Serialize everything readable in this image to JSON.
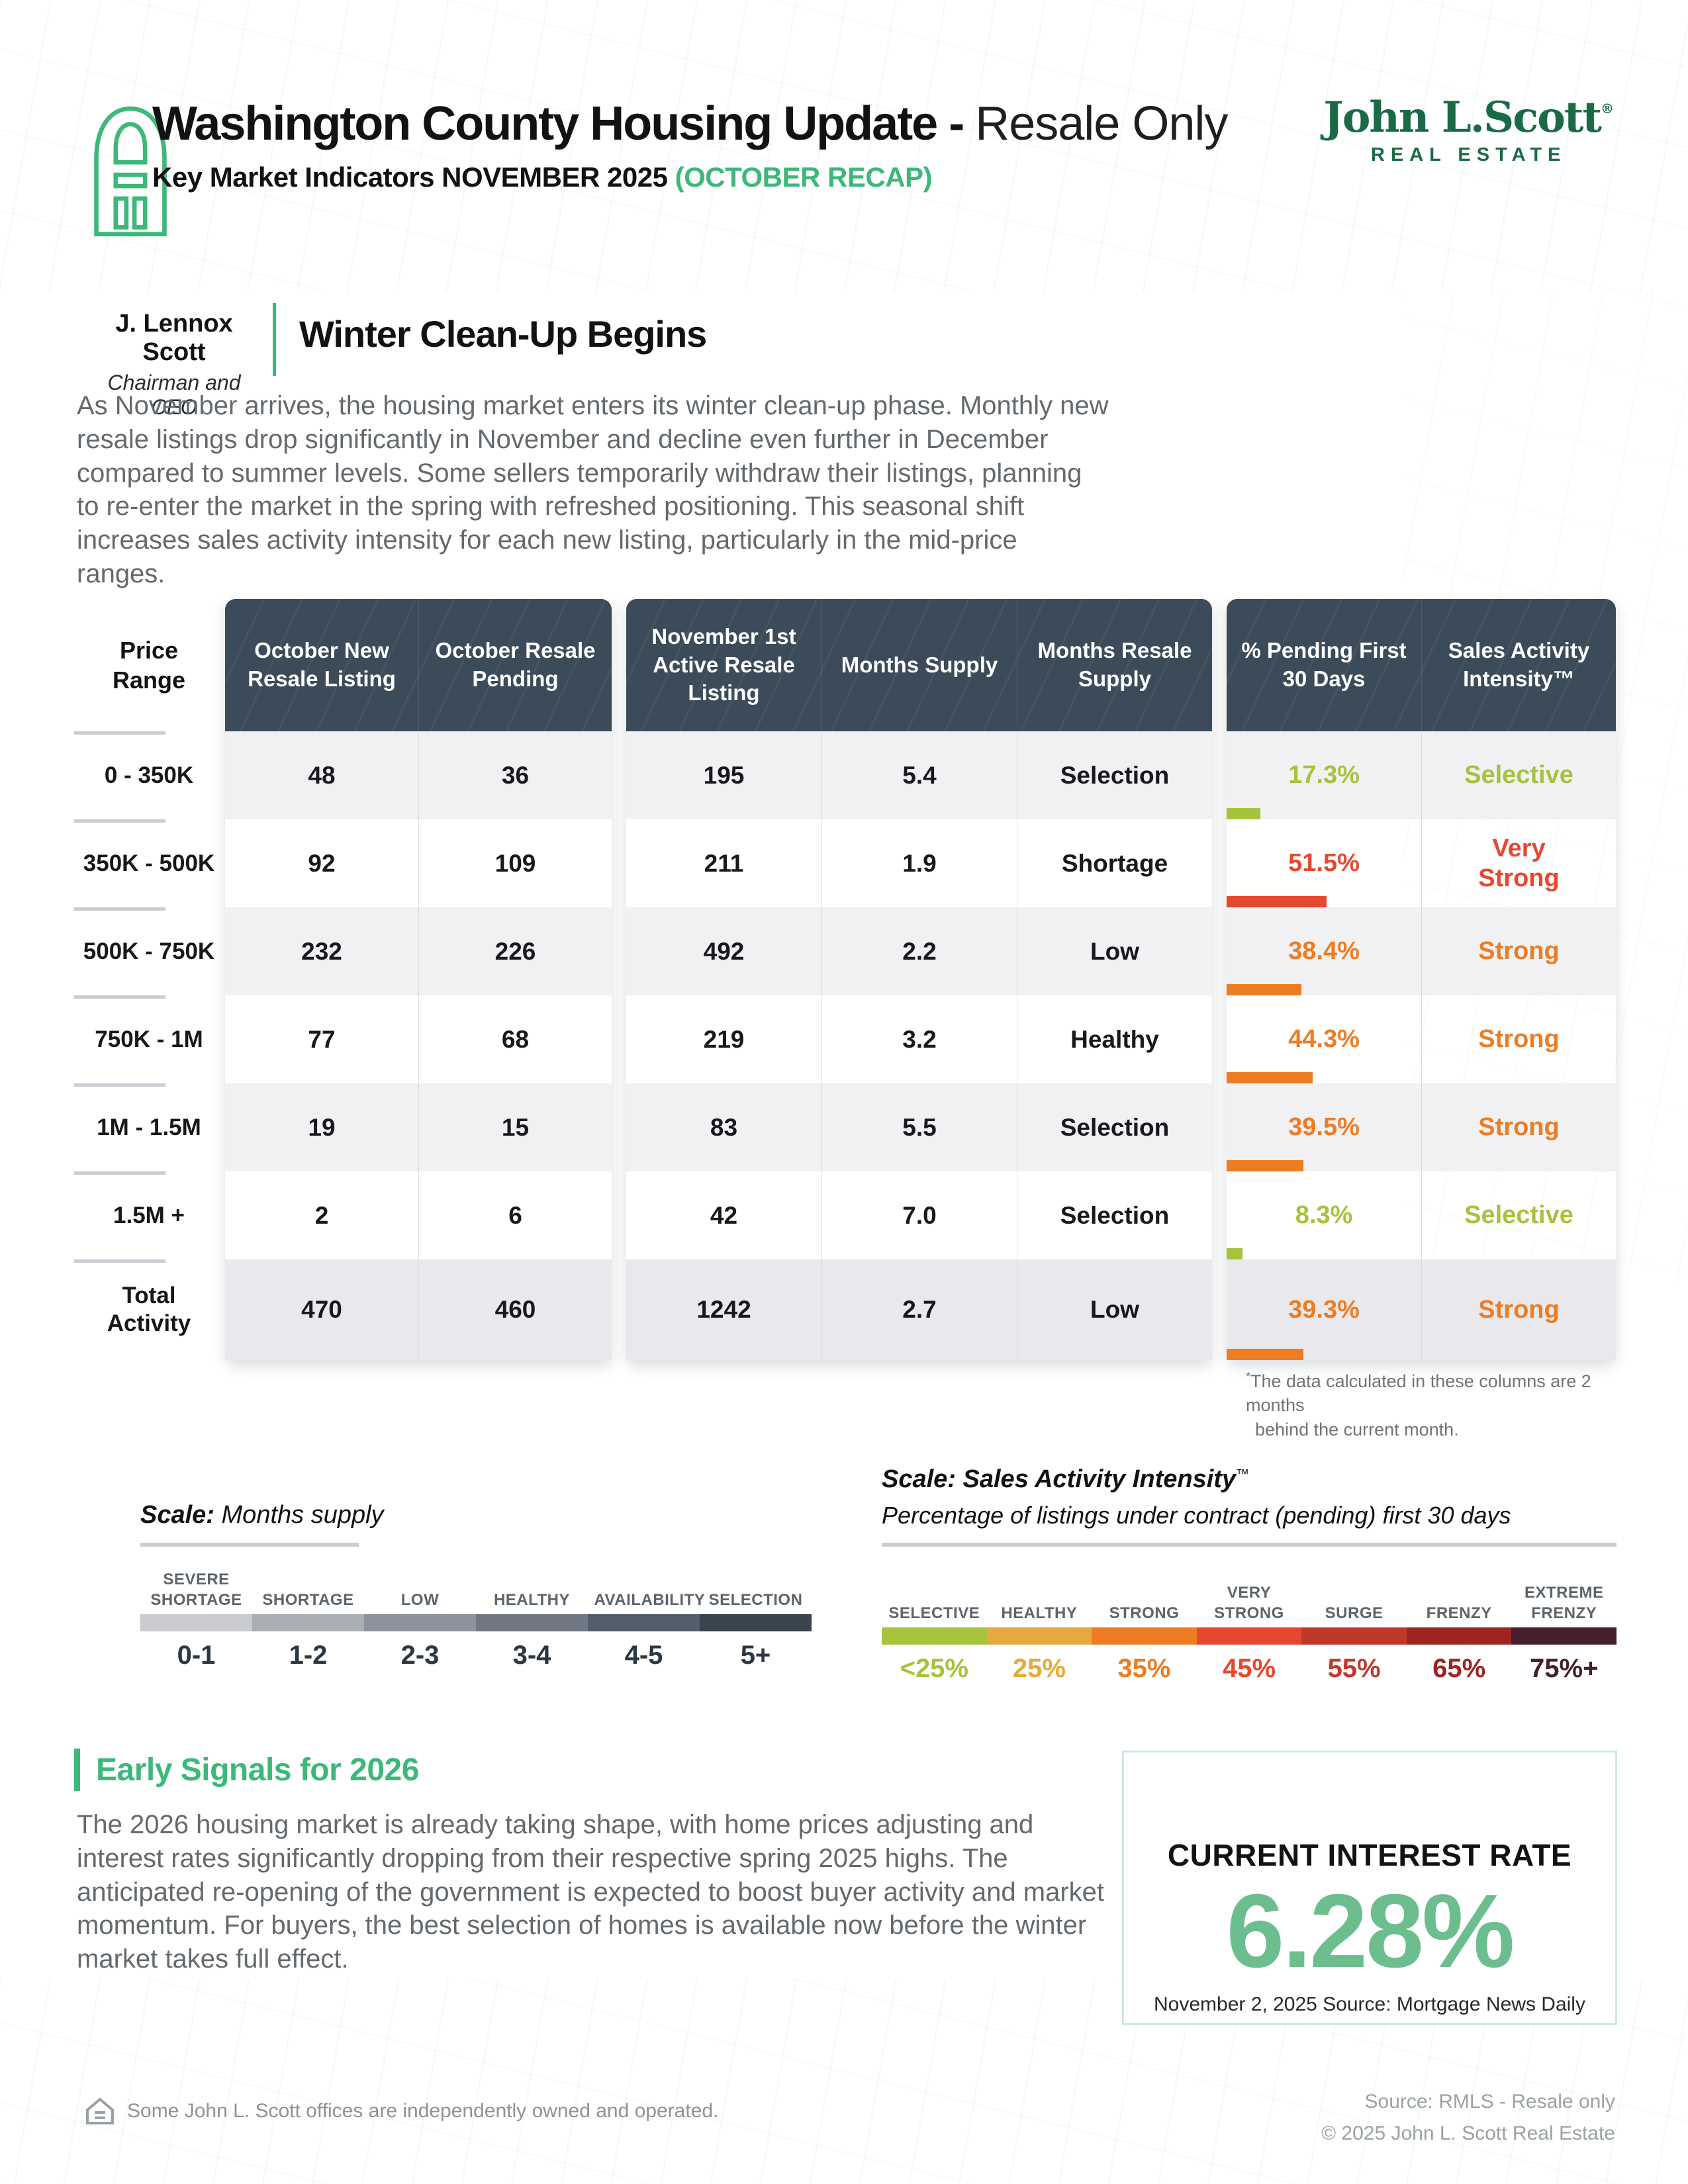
{
  "colors": {
    "accent_green": "#3cb878",
    "logo_green": "#1b6a46",
    "rate_green": "#6cbe8e",
    "header_slate": "#3c4b59",
    "selective": "#a5c33b",
    "healthy_amber": "#e5a93d",
    "strong_orange": "#ee7c22",
    "very_strong_red": "#e8472f",
    "surge_red": "#bf392b",
    "frenzy_red": "#9c2521",
    "extreme_maroon": "#451f2c"
  },
  "header": {
    "title_main": "Washington County Housing Update - ",
    "title_light": "Resale Only",
    "subtitle_main": "Key Market Indicators NOVEMBER 2025 ",
    "subtitle_recap": "(OCTOBER RECAP)",
    "logo_name": "John L.Scott",
    "logo_reg": "®",
    "logo_tagline": "REAL ESTATE"
  },
  "byline": {
    "name": "J. Lennox Scott",
    "role": "Chairman and CEO",
    "headline": "Winter Clean-Up Begins"
  },
  "intro": "As November arrives, the housing market enters its winter clean-up phase. Monthly new resale listings drop significantly in November and decline even further in December compared to summer levels. Some sellers temporarily withdraw their listings, planning to re-enter the market in the spring with refreshed positioning. This seasonal shift increases sales activity intensity for each new listing, particularly in the mid-price ranges.",
  "table": {
    "price_header": "Price Range",
    "groups": [
      {
        "headers": [
          "October New Resale Listing",
          "October Resale Pending"
        ]
      },
      {
        "headers": [
          "November 1st Active Resale Listing",
          "Months Supply",
          "Months Resale Supply"
        ]
      },
      {
        "headers": [
          "% Pending First 30 Days",
          "Sales Activity Intensity™"
        ]
      }
    ],
    "rows": [
      {
        "price": "0 - 350K",
        "new_listing": "48",
        "pending": "36",
        "active": "195",
        "months_supply": "5.4",
        "resale_supply": "Selection",
        "pct_pending": "17.3%",
        "intensity": "Selective",
        "color": "#a5c33b"
      },
      {
        "price": "350K - 500K",
        "new_listing": "92",
        "pending": "109",
        "active": "211",
        "months_supply": "1.9",
        "resale_supply": "Shortage",
        "pct_pending": "51.5%",
        "intensity": "Very Strong",
        "color": "#e8472f"
      },
      {
        "price": "500K - 750K",
        "new_listing": "232",
        "pending": "226",
        "active": "492",
        "months_supply": "2.2",
        "resale_supply": "Low",
        "pct_pending": "38.4%",
        "intensity": "Strong",
        "color": "#ee7c22"
      },
      {
        "price": "750K - 1M",
        "new_listing": "77",
        "pending": "68",
        "active": "219",
        "months_supply": "3.2",
        "resale_supply": "Healthy",
        "pct_pending": "44.3%",
        "intensity": "Strong",
        "color": "#ee7c22"
      },
      {
        "price": "1M - 1.5M",
        "new_listing": "19",
        "pending": "15",
        "active": "83",
        "months_supply": "5.5",
        "resale_supply": "Selection",
        "pct_pending": "39.5%",
        "intensity": "Strong",
        "color": "#ee7c22"
      },
      {
        "price": "1.5M +",
        "new_listing": "2",
        "pending": "6",
        "active": "42",
        "months_supply": "7.0",
        "resale_supply": "Selection",
        "pct_pending": "8.3%",
        "intensity": "Selective",
        "color": "#a5c33b"
      },
      {
        "price": "Total Activity",
        "new_listing": "470",
        "pending": "460",
        "active": "1242",
        "months_supply": "2.7",
        "resale_supply": "Low",
        "pct_pending": "39.3%",
        "intensity": "Strong",
        "color": "#ee7c22"
      }
    ],
    "footnote_star": "*",
    "footnote_line1": "The data calculated in these columns are 2 months",
    "footnote_line2": "behind the current month."
  },
  "scales": {
    "months": {
      "title_bold": "Scale:",
      "title_rest": " Months supply",
      "segments": [
        {
          "label": "SEVERE SHORTAGE",
          "range": "0-1",
          "color": "#c9cbd0"
        },
        {
          "label": "SHORTAGE",
          "range": "1-2",
          "color": "#aaaeb5"
        },
        {
          "label": "LOW",
          "range": "2-3",
          "color": "#8d939c"
        },
        {
          "label": "HEALTHY",
          "range": "3-4",
          "color": "#6f7883"
        },
        {
          "label": "AVAILABILITY",
          "range": "4-5",
          "color": "#525e6b"
        },
        {
          "label": "SELECTION",
          "range": "5+",
          "color": "#39444f"
        }
      ]
    },
    "intensity": {
      "title": "Scale: Sales Activity Intensity",
      "tm": "™",
      "subtitle": "Percentage of listings under contract (pending) first 30 days",
      "segments": [
        {
          "label": "SELECTIVE",
          "value": "<25%",
          "color": "#a5c33b"
        },
        {
          "label": "HEALTHY",
          "value": "25%",
          "color": "#e5a93d"
        },
        {
          "label": "STRONG",
          "value": "35%",
          "color": "#ee7c22"
        },
        {
          "label": "VERY STRONG",
          "value": "45%",
          "color": "#e8472f"
        },
        {
          "label": "SURGE",
          "value": "55%",
          "color": "#bf392b"
        },
        {
          "label": "FRENZY",
          "value": "65%",
          "color": "#9c2521"
        },
        {
          "label": "EXTREME FRENZY",
          "value": "75%+",
          "color": "#451f2c"
        }
      ]
    }
  },
  "early": {
    "heading": "Early Signals for 2026",
    "body": "The 2026 housing market is already taking shape, with home prices adjusting and interest rates significantly dropping from their respective spring 2025 highs. The anticipated re-opening of the government is expected to boost buyer activity and market momentum. For buyers, the best selection of homes is available now before the winter market takes full effect."
  },
  "rate": {
    "label": "CURRENT INTEREST RATE",
    "value": "6.28%",
    "source": "November 2, 2025 Source: Mortgage News Daily"
  },
  "footer": {
    "left": "Some John L. Scott offices are independently owned and operated.",
    "right1": "Source: RMLS - Resale only",
    "right2": "© 2025 John L. Scott Real Estate"
  }
}
